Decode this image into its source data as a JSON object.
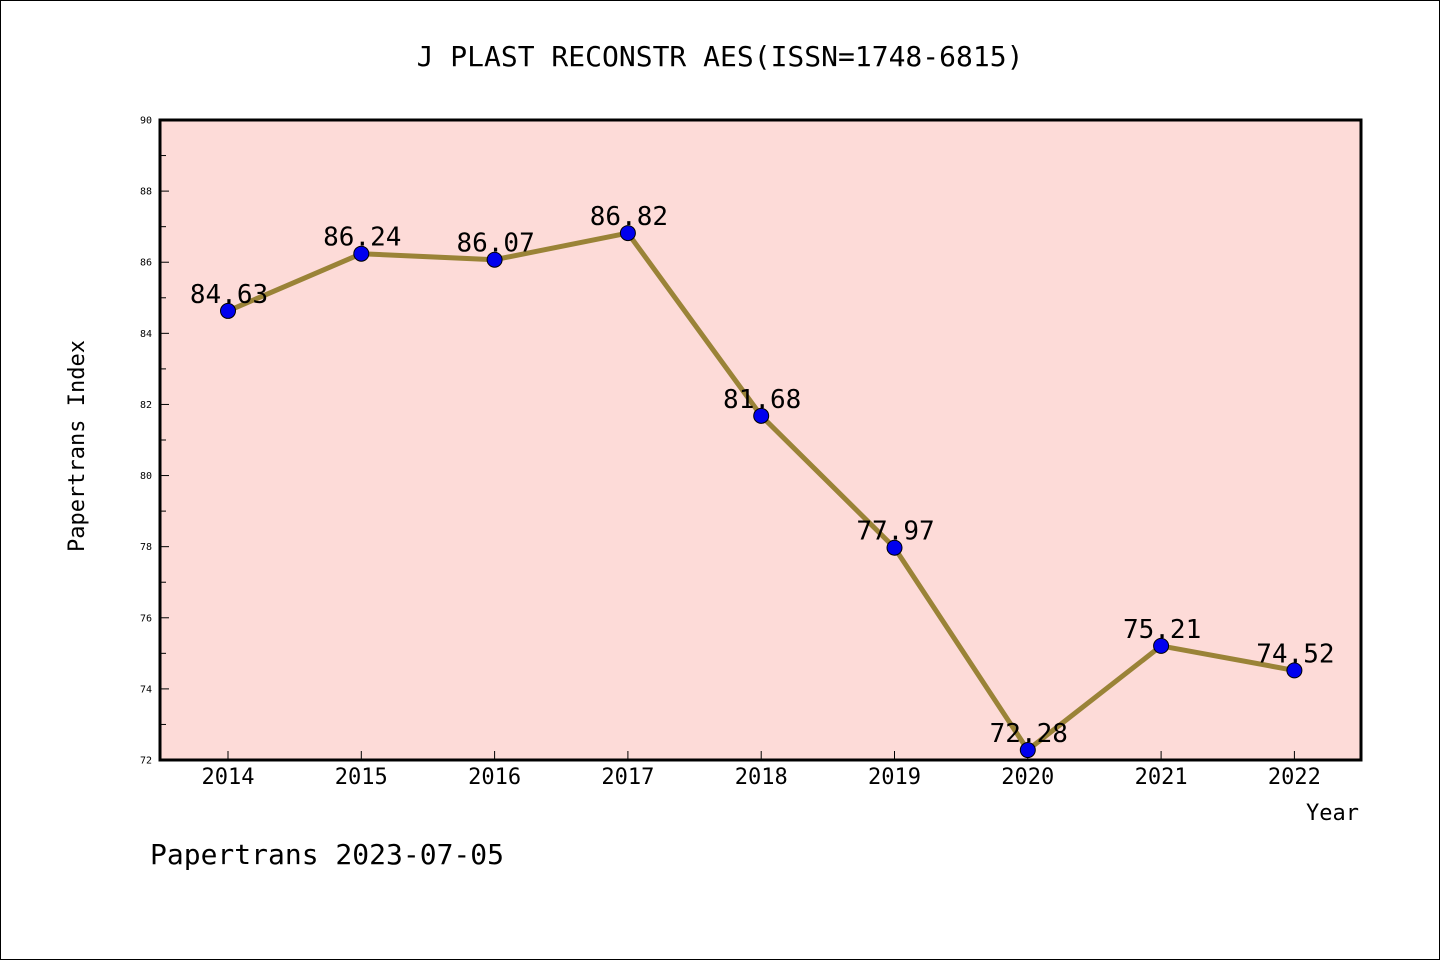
{
  "chart_data": {
    "type": "line",
    "title": "J PLAST RECONSTR AES(ISSN=1748-6815)",
    "xlabel": "Year",
    "ylabel": "Papertrans Index",
    "categories": [
      "2014",
      "2015",
      "2016",
      "2017",
      "2018",
      "2019",
      "2020",
      "2021",
      "2022"
    ],
    "values": [
      84.63,
      86.24,
      86.07,
      86.82,
      81.68,
      77.97,
      72.28,
      75.21,
      74.52
    ],
    "data_labels": [
      "84.63",
      "86.24",
      "86.07",
      "86.82",
      "81.68",
      "77.97",
      "72.28",
      "75.21",
      "74.52"
    ],
    "ylim": [
      72,
      90
    ],
    "yticks": [
      "72",
      "74",
      "76",
      "78",
      "80",
      "82",
      "84",
      "86",
      "88",
      "90"
    ],
    "grid": false,
    "plot_background": "#fddbd8",
    "line_color": "#9a8337",
    "marker_color": "#0000ee"
  },
  "footer": "Papertrans 2023-07-05"
}
